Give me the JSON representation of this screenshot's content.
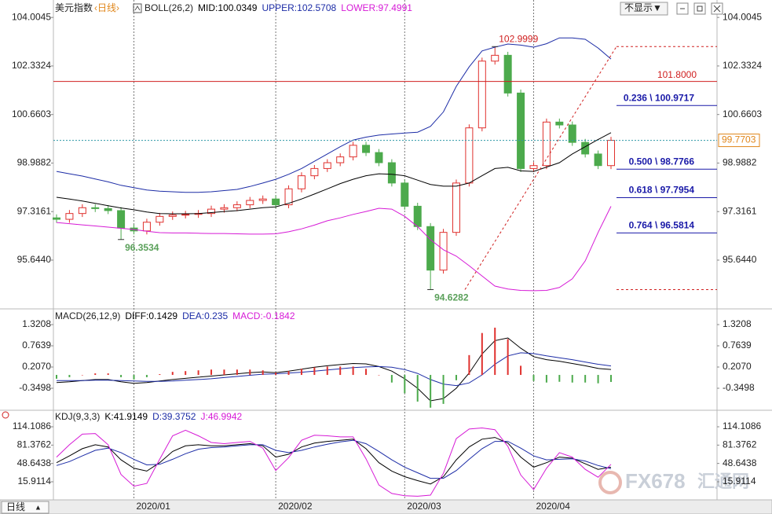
{
  "header": {
    "symbol": "美元指数",
    "period": "‹日线›",
    "button": "不显示▼"
  },
  "footer": {
    "tab": "日线",
    "arrow": "▲"
  },
  "watermark": {
    "brand": "FX678",
    "name": "汇通网"
  },
  "chart_data": [
    {
      "type": "candlestick",
      "title": "BOLL(26,2)",
      "categories": [
        null,
        null,
        null,
        null,
        null,
        null,
        "2020/01",
        null,
        null,
        null,
        null,
        null,
        null,
        null,
        null,
        null,
        null,
        "2020/02",
        null,
        null,
        null,
        null,
        null,
        null,
        null,
        null,
        null,
        "2020/03",
        null,
        null,
        null,
        null,
        null,
        null,
        null,
        null,
        null,
        "2020/04",
        null,
        null,
        null,
        null,
        null,
        null
      ],
      "open": [
        97.1,
        97.05,
        97.25,
        97.45,
        97.42,
        97.35,
        96.75,
        96.65,
        96.95,
        97.15,
        97.2,
        97.22,
        97.25,
        97.4,
        97.45,
        97.55,
        97.7,
        97.75,
        97.55,
        98.1,
        98.55,
        98.8,
        99.0,
        99.2,
        99.6,
        99.35,
        99.0,
        98.3,
        97.5,
        96.8,
        95.3,
        96.6,
        98.3,
        100.2,
        102.5,
        102.7,
        101.4,
        98.8,
        98.9,
        100.4,
        100.3,
        99.7,
        99.3,
        98.9
      ],
      "high": [
        97.22,
        97.37,
        97.57,
        97.57,
        97.54,
        97.47,
        96.87,
        97.07,
        97.27,
        97.32,
        97.34,
        97.37,
        97.52,
        97.57,
        97.67,
        97.82,
        97.87,
        97.87,
        98.22,
        98.67,
        98.92,
        99.12,
        99.32,
        99.72,
        99.72,
        99.47,
        99.12,
        98.42,
        97.62,
        96.92,
        96.72,
        98.42,
        100.32,
        102.62,
        102.9999,
        102.82,
        101.52,
        99.02,
        100.52,
        100.52,
        100.42,
        99.82,
        99.42,
        99.89
      ],
      "low": [
        96.93,
        96.93,
        97.13,
        97.3,
        97.23,
        96.3534,
        96.53,
        96.53,
        96.83,
        97.03,
        97.08,
        97.1,
        97.13,
        97.28,
        97.33,
        97.43,
        97.58,
        97.43,
        97.43,
        97.98,
        98.43,
        98.68,
        98.88,
        99.08,
        99.23,
        98.88,
        98.18,
        97.38,
        96.68,
        94.6282,
        95.18,
        96.48,
        98.18,
        100.08,
        102.38,
        101.28,
        98.68,
        98.68,
        98.78,
        100.18,
        99.58,
        99.18,
        98.78,
        98.78
      ],
      "close": [
        97.05,
        97.25,
        97.45,
        97.42,
        97.35,
        96.75,
        96.65,
        96.95,
        97.15,
        97.2,
        97.22,
        97.25,
        97.4,
        97.45,
        97.55,
        97.7,
        97.75,
        97.55,
        98.1,
        98.55,
        98.8,
        99.0,
        99.2,
        99.6,
        99.35,
        99.0,
        98.3,
        97.5,
        96.8,
        95.3,
        96.6,
        98.3,
        100.2,
        102.5,
        102.7,
        101.4,
        98.8,
        98.9,
        100.4,
        100.3,
        99.7,
        99.3,
        98.9,
        99.7703
      ],
      "up_color": "#e0312e",
      "down_color": "#4caa4c",
      "series": [
        {
          "name": "MID:",
          "color": "#000000",
          "values": [
            97.81,
            97.75,
            97.68,
            97.6,
            97.52,
            97.44,
            97.38,
            97.3,
            97.25,
            97.24,
            97.24,
            97.25,
            97.28,
            97.32,
            97.35,
            97.4,
            97.45,
            97.48,
            97.6,
            97.75,
            97.92,
            98.1,
            98.28,
            98.43,
            98.55,
            98.62,
            98.6,
            98.55,
            98.4,
            98.25,
            98.19,
            98.19,
            98.3,
            98.55,
            98.8,
            98.84,
            98.72,
            98.7,
            98.85,
            99.0,
            99.3,
            99.55,
            99.8,
            100.0349
          ]
        },
        {
          "name": "UPPER:",
          "color": "#1c2ca6",
          "values": [
            98.7,
            98.62,
            98.54,
            98.44,
            98.34,
            98.22,
            98.14,
            98.06,
            98.02,
            98.0,
            97.98,
            97.98,
            98.0,
            98.04,
            98.08,
            98.18,
            98.3,
            98.43,
            98.6,
            98.8,
            99.05,
            99.3,
            99.55,
            99.78,
            99.88,
            99.95,
            99.99,
            100.02,
            100.05,
            100.25,
            100.75,
            101.63,
            102.3,
            102.85,
            102.98,
            103.09,
            103.05,
            102.98,
            103.1,
            103.3,
            103.3,
            103.25,
            102.95,
            102.5708
          ]
        },
        {
          "name": "LOWER:",
          "color": "#d61ad6",
          "values": [
            96.94,
            96.9,
            96.86,
            96.82,
            96.78,
            96.74,
            96.7,
            96.64,
            96.59,
            96.58,
            96.58,
            96.57,
            96.56,
            96.56,
            96.55,
            96.54,
            96.54,
            96.55,
            96.62,
            96.72,
            96.85,
            97.0,
            97.1,
            97.22,
            97.32,
            97.43,
            97.4,
            97.15,
            96.8,
            96.35,
            96.0,
            95.78,
            95.45,
            95.1,
            94.75,
            94.65,
            94.6,
            94.59,
            94.6,
            94.7,
            95.0,
            95.62,
            96.6,
            97.4991
          ]
        }
      ],
      "ylim": [
        94.1,
        104.28
      ],
      "yticks": [
        104.0045,
        102.3324,
        100.6603,
        98.9882,
        97.3161,
        {
          "value": 95.644,
          "label": "95.6440"
        }
      ],
      "grid": false,
      "hlines": [
        {
          "value": 101.8,
          "label": "101.8000",
          "color": "#d02020"
        }
      ],
      "last_price_color": "#2f97a8",
      "last_price_box_color": "#e0861a",
      "extreme_high_color": "#d02020",
      "extreme_low_color": "#5aa05a",
      "fibonacci": {
        "color": "#1a1aa8",
        "levels": [
          {
            "value": 100.9717,
            "label": "0.236 \\ 100.9717"
          },
          {
            "value": 98.7766,
            "label": "0.500 \\ 98.7766"
          },
          {
            "value": 97.7954,
            "label": "0.618 \\ 97.7954"
          },
          {
            "value": 96.5814,
            "label": "0.764 \\ 96.5814"
          }
        ]
      }
    },
    {
      "type": "macd",
      "title": "MACD(26,12,9)",
      "up_color": "#e0312e",
      "down_color": "#4caa4c",
      "series": [
        {
          "name": "DIFF:",
          "color": "#000000",
          "values": [
            -0.2,
            -0.18,
            -0.15,
            -0.12,
            -0.12,
            -0.18,
            -0.22,
            -0.2,
            -0.16,
            -0.12,
            -0.09,
            -0.06,
            -0.03,
            0.0,
            0.03,
            0.06,
            0.08,
            0.06,
            0.1,
            0.15,
            0.2,
            0.24,
            0.27,
            0.3,
            0.29,
            0.22,
            0.1,
            -0.1,
            -0.35,
            -0.68,
            -0.62,
            -0.35,
            0.05,
            0.55,
            0.9,
            0.97,
            0.7,
            0.48,
            0.4,
            0.36,
            0.3,
            0.24,
            0.17,
            0.1429
          ]
        },
        {
          "name": "DEA:",
          "color": "#1c2ca6",
          "values": [
            -0.15,
            -0.15,
            -0.15,
            -0.14,
            -0.14,
            -0.15,
            -0.16,
            -0.17,
            -0.17,
            -0.16,
            -0.14,
            -0.12,
            -0.1,
            -0.07,
            -0.04,
            -0.01,
            0.02,
            0.03,
            0.05,
            0.07,
            0.1,
            0.13,
            0.16,
            0.19,
            0.21,
            0.22,
            0.2,
            0.14,
            0.04,
            -0.12,
            -0.24,
            -0.28,
            -0.21,
            0.0,
            0.28,
            0.5,
            0.58,
            0.56,
            0.5,
            0.45,
            0.4,
            0.34,
            0.28,
            0.235
          ]
        },
        {
          "name": "MACD:",
          "color": "#d61ad6",
          "style": "histogram",
          "values": [
            -0.1,
            -0.06,
            0.0,
            0.04,
            0.04,
            -0.06,
            -0.12,
            -0.06,
            0.02,
            0.08,
            0.1,
            0.12,
            0.14,
            0.14,
            0.14,
            0.14,
            0.12,
            0.06,
            0.1,
            0.16,
            0.2,
            0.22,
            0.22,
            0.22,
            0.16,
            0.0,
            -0.2,
            -0.48,
            -0.7,
            -0.86,
            -0.76,
            -0.14,
            0.52,
            1.1,
            1.24,
            0.94,
            0.24,
            -0.16,
            -0.2,
            -0.18,
            -0.2,
            -0.2,
            -0.22,
            -0.1842
          ]
        }
      ],
      "ylim": [
        -0.886,
        1.63
      ],
      "yticks": [
        1.3208,
        0.7639,
        {
          "value": 0.207,
          "label": "0.2070"
        },
        -0.3498
      ],
      "grid": false
    },
    {
      "type": "kdj",
      "title": "KDJ(9,3,3)",
      "series": [
        {
          "name": "K:",
          "color": "#000000",
          "values": [
            50,
            62,
            75,
            82,
            78,
            55,
            40,
            35,
            50,
            70,
            80,
            82,
            80,
            80,
            82,
            84,
            80,
            60,
            65,
            78,
            85,
            88,
            90,
            92,
            75,
            50,
            35,
            25,
            18,
            12,
            25,
            55,
            78,
            92,
            95,
            85,
            60,
            42,
            50,
            60,
            58,
            48,
            38,
            41.9149
          ]
        },
        {
          "name": "D:",
          "color": "#1c2ca6",
          "values": [
            45,
            52,
            62,
            72,
            76,
            68,
            56,
            46,
            47,
            56,
            66,
            74,
            77,
            78,
            80,
            82,
            82,
            72,
            68,
            72,
            78,
            83,
            87,
            90,
            84,
            70,
            55,
            42,
            32,
            22,
            22,
            36,
            56,
            75,
            88,
            88,
            76,
            62,
            55,
            56,
            57,
            53,
            45,
            39.3752
          ]
        },
        {
          "name": "J:",
          "color": "#d61ad6",
          "values": [
            60,
            82,
            101,
            102,
            82,
            29,
            8,
            13,
            56,
            98,
            108,
            98,
            86,
            84,
            86,
            88,
            76,
            36,
            59,
            90,
            99,
            98,
            96,
            96,
            57,
            10,
            -5,
            -9,
            -10,
            -8,
            31,
            93,
            110,
            112,
            109,
            79,
            28,
            2,
            40,
            68,
            60,
            38,
            24,
            46.9942
          ]
        }
      ],
      "ylim": [
        -16.4,
        140.8
      ],
      "yticks": [
        114.1086,
        81.3762,
        48.6438,
        15.9114
      ],
      "grid": false
    }
  ]
}
